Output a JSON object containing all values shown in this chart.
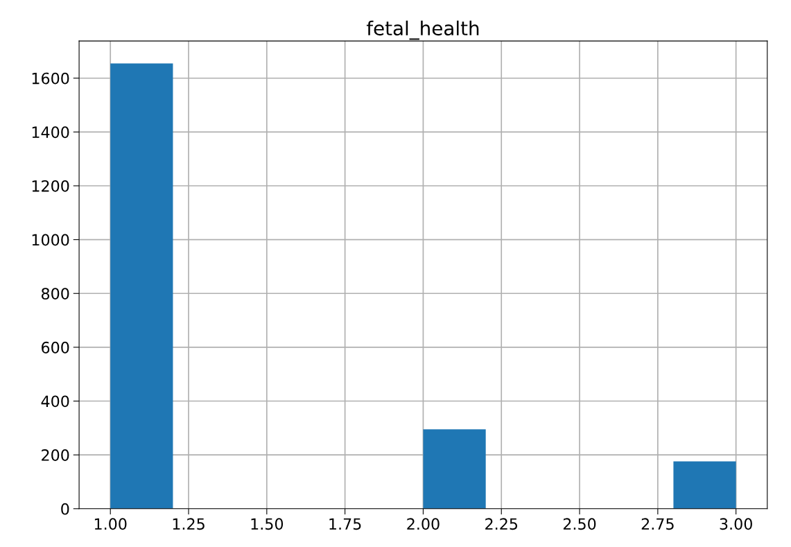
{
  "chart_data": {
    "type": "histogram",
    "title": "fetal_health",
    "bins": [
      1.0,
      1.2,
      1.4,
      1.6,
      1.8,
      2.0,
      2.2,
      2.4,
      2.6,
      2.8,
      3.0
    ],
    "values": [
      1655,
      0,
      0,
      0,
      0,
      295,
      0,
      0,
      0,
      176
    ],
    "color": "#1f77b4",
    "xlim": [
      0.9,
      3.1
    ],
    "xticks": [
      {
        "value": 1.0,
        "label": "1.00"
      },
      {
        "value": 1.25,
        "label": "1.25"
      },
      {
        "value": 1.5,
        "label": "1.50"
      },
      {
        "value": 1.75,
        "label": "1.75"
      },
      {
        "value": 2.0,
        "label": "2.00"
      },
      {
        "value": 2.25,
        "label": "2.25"
      },
      {
        "value": 2.5,
        "label": "2.50"
      },
      {
        "value": 2.75,
        "label": "2.75"
      },
      {
        "value": 3.0,
        "label": "3.00"
      }
    ],
    "ylim": [
      0,
      1738
    ],
    "yticks": [
      0,
      200,
      400,
      600,
      800,
      1000,
      1200,
      1400,
      1600
    ],
    "grid": true
  }
}
